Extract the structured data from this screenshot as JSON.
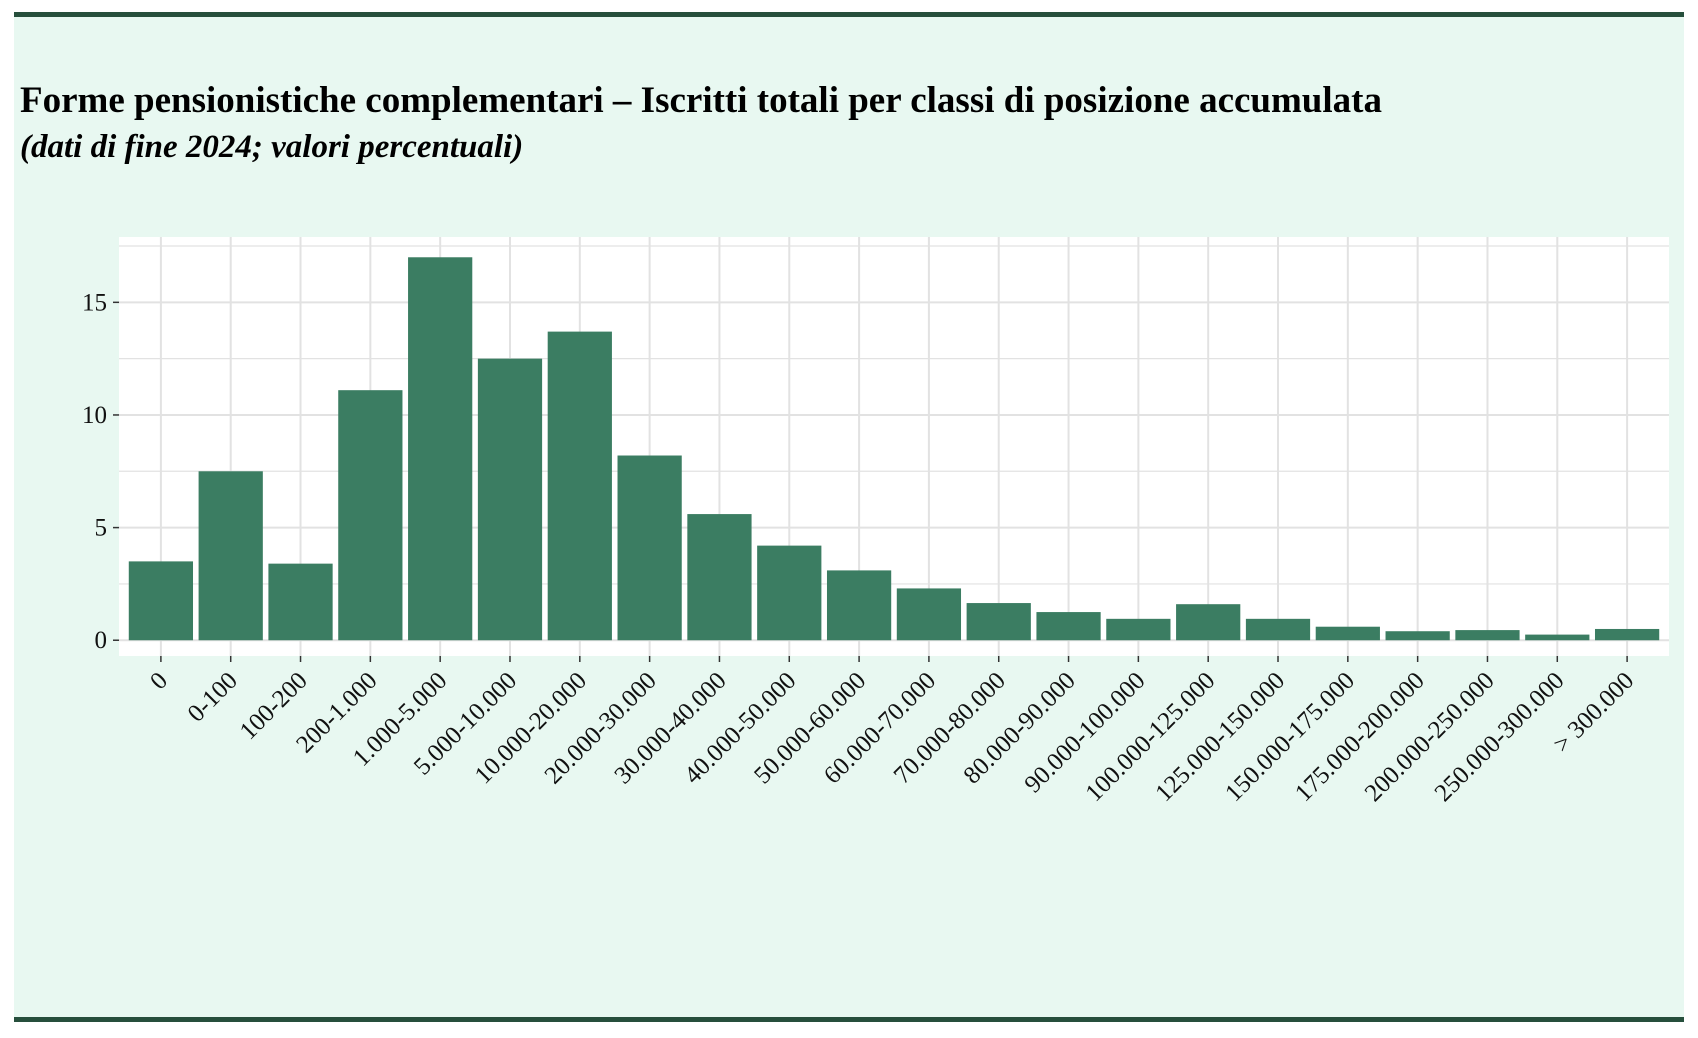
{
  "header": {
    "title": "Forme pensionistiche complementari – Iscritti totali per classi di posizione accumulata",
    "subtitle": "(dati di fine 2024; valori percentuali)"
  },
  "colors": {
    "bar": "#3b7d62",
    "panel_background": "#e8f8f1",
    "panel_border": "#264f3c",
    "plot_background": "#ffffff",
    "grid": "#e2e2e2"
  },
  "chart_data": {
    "type": "bar",
    "title": "Forme pensionistiche complementari – Iscritti totali per classi di posizione accumulata",
    "subtitle": "(dati di fine 2024; valori percentuali)",
    "xlabel": "",
    "ylabel": "",
    "categories": [
      "0",
      "0-100",
      "100-200",
      "200-1.000",
      "1.000-5.000",
      "5.000-10.000",
      "10.000-20.000",
      "20.000-30.000",
      "30.000-40.000",
      "40.000-50.000",
      "50.000-60.000",
      "60.000-70.000",
      "70.000-80.000",
      "80.000-90.000",
      "90.000-100.000",
      "100.000-125.000",
      "125.000-150.000",
      "150.000-175.000",
      "175.000-200.000",
      "200.000-250.000",
      "250.000-300.000",
      "> 300.000"
    ],
    "values": [
      3.5,
      7.5,
      3.4,
      11.1,
      17.0,
      12.5,
      13.7,
      8.2,
      5.6,
      4.2,
      3.1,
      2.3,
      1.65,
      1.25,
      0.95,
      1.6,
      0.95,
      0.6,
      0.4,
      0.45,
      0.25,
      0.5
    ],
    "ylim": [
      -0.7,
      17.9
    ],
    "yticks": [
      0,
      5,
      10,
      15
    ],
    "grid": true,
    "legend": "none"
  }
}
